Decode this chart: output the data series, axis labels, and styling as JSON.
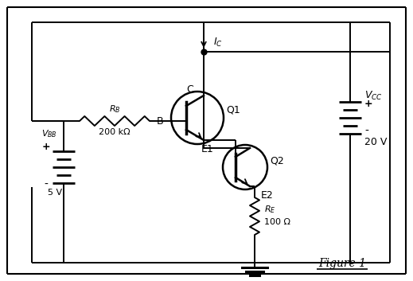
{
  "bg_color": "#ffffff",
  "border_color": "#000000",
  "line_color": "#000000",
  "title": "Figure 1",
  "vbb_label": "$V_{\\mathregular{BB}}$",
  "vbb_value": "5 V",
  "vcc_label": "$V_{\\mathregular{CC}}$",
  "vcc_value": "20 V",
  "rb_label": "$R_{\\mathregular{B}}$",
  "rb_value": "200 kΩ",
  "re_label": "$R_{\\mathregular{E}}$",
  "re_value": "100 Ω",
  "ic_label": "$I_C$",
  "q1_label": "Q1",
  "q2_label": "Q2",
  "b_label": "B",
  "c_label": "C",
  "e1_label": "E1",
  "e2_label": "E2",
  "plus_sign": "+",
  "minus_sign": "-"
}
